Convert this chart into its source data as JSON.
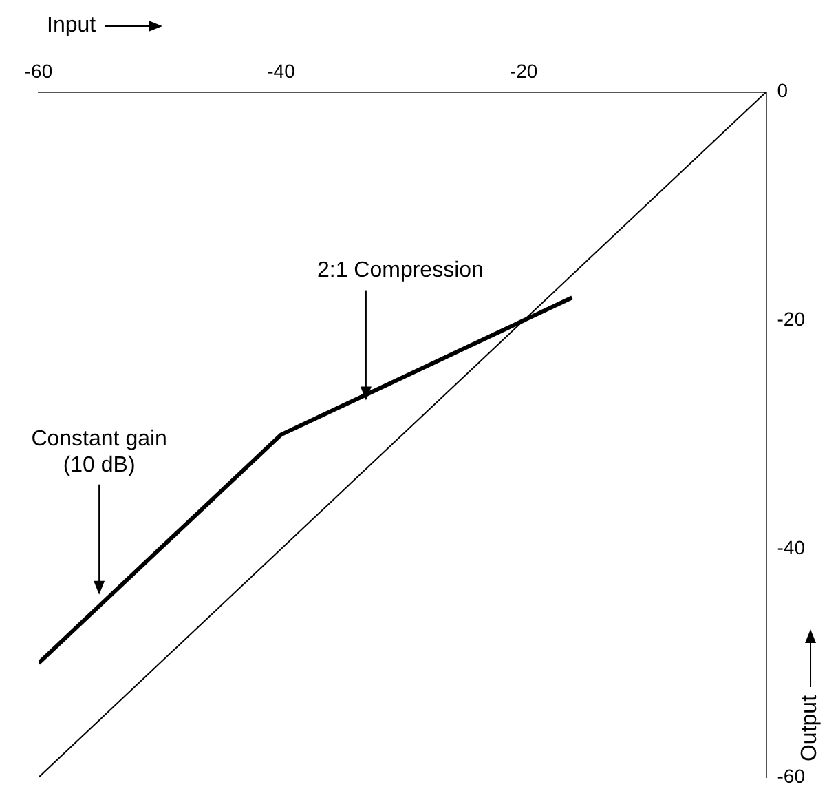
{
  "chart_data": {
    "type": "line",
    "xlabel": "Input",
    "ylabel": "Output",
    "xlim": [
      -60,
      0
    ],
    "ylim": [
      -60,
      0
    ],
    "xticks": [
      -60,
      -40,
      -20
    ],
    "yticks": [
      -60,
      -40,
      -20,
      0
    ],
    "grid": false,
    "legend": false,
    "marker": "none",
    "line_style": "solid",
    "series": [
      {
        "color": "#000000",
        "x": [
          -60,
          -40,
          -16
        ],
        "values": [
          -50,
          -30,
          -18
        ]
      },
      {
        "color": "#000000",
        "x": [
          -60,
          0
        ],
        "values": [
          -60,
          0
        ]
      }
    ],
    "annotations": [
      {
        "text": "2:1 Compression",
        "x": -33,
        "y": -27
      },
      {
        "text": "Constant gain\n(10 dB)",
        "x": -55,
        "y": -44
      }
    ]
  }
}
